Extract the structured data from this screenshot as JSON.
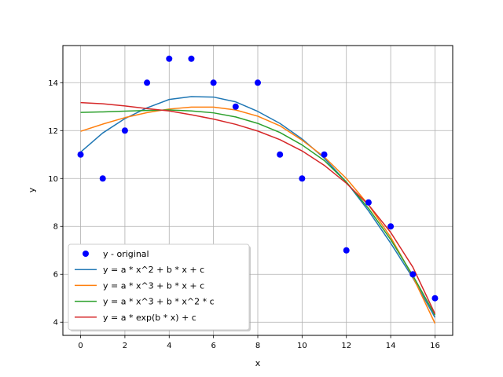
{
  "chart_data": {
    "type": "line",
    "title": "",
    "xlabel": "x",
    "ylabel": "y",
    "xlim": [
      -0.8,
      16.8
    ],
    "ylim": [
      3.45,
      15.55
    ],
    "xticks": [
      0,
      2,
      4,
      6,
      8,
      10,
      12,
      14,
      16
    ],
    "yticks": [
      4,
      6,
      8,
      10,
      12,
      14
    ],
    "grid": true,
    "legend_position": "lower-left",
    "x": [
      0,
      1,
      2,
      3,
      4,
      5,
      6,
      7,
      8,
      9,
      10,
      11,
      12,
      13,
      14,
      15,
      16
    ],
    "series": [
      {
        "name": "y - original",
        "kind": "scatter",
        "color": "#0000ff",
        "values": [
          11,
          10,
          12,
          14,
          15,
          15,
          14,
          13,
          14,
          11,
          10,
          11,
          7,
          9,
          8,
          6,
          5
        ]
      },
      {
        "name": "y = a * x^2 + b * x + c",
        "kind": "line",
        "color": "#1f77b4",
        "values": [
          11.1,
          11.9,
          12.5,
          12.95,
          13.3,
          13.42,
          13.4,
          13.2,
          12.8,
          12.3,
          11.65,
          10.85,
          9.85,
          8.65,
          7.3,
          5.85,
          4.2
        ]
      },
      {
        "name": "y = a * x^3 + b * x + c",
        "kind": "line",
        "color": "#ff7f0e",
        "values": [
          11.97,
          12.27,
          12.54,
          12.75,
          12.9,
          12.98,
          12.98,
          12.86,
          12.6,
          12.2,
          11.6,
          10.9,
          10.0,
          8.9,
          7.55,
          5.9,
          3.95
        ]
      },
      {
        "name": "y = a * x^3 + b * x^2 * c",
        "kind": "line",
        "color": "#2ca02c",
        "values": [
          12.76,
          12.78,
          12.81,
          12.84,
          12.86,
          12.82,
          12.74,
          12.57,
          12.3,
          11.92,
          11.4,
          10.75,
          9.85,
          8.75,
          7.45,
          5.95,
          4.3
        ]
      },
      {
        "name": "y = a * exp(b * x) + c",
        "kind": "line",
        "color": "#d62728",
        "values": [
          13.17,
          13.12,
          13.03,
          12.92,
          12.82,
          12.66,
          12.48,
          12.26,
          11.98,
          11.62,
          11.15,
          10.55,
          9.8,
          8.9,
          7.75,
          6.3,
          4.35
        ]
      }
    ]
  }
}
